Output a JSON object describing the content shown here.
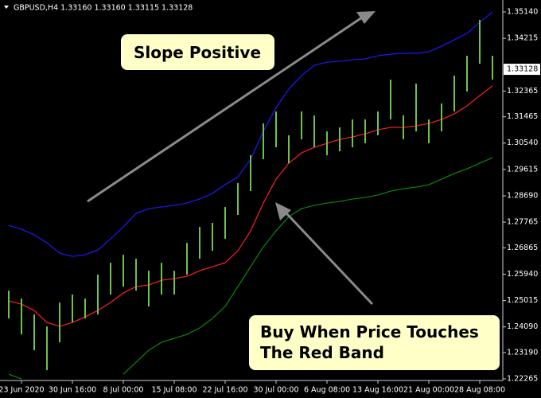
{
  "chart_data": {
    "type": "ohlc",
    "title": "GBPUSD,H4  1.33160 1.33160 1.33115 1.33128",
    "categories": [
      null,
      "23 Jun 2020",
      null,
      null,
      null,
      "30 Jun 16:00",
      null,
      null,
      null,
      "8 Jul 00:00",
      null,
      null,
      null,
      "15 Jul 08:00",
      null,
      null,
      null,
      "22 Jul 16:00",
      null,
      null,
      null,
      "30 Jul 00:00",
      null,
      null,
      null,
      "6 Aug 08:00",
      null,
      null,
      null,
      "13 Aug 16:00",
      null,
      null,
      null,
      "21 Aug 00:00",
      null,
      null,
      null,
      "28 Aug 08:00",
      null
    ],
    "high": [
      1.25364,
      1.25085,
      1.24527,
      1.24108,
      1.24946,
      1.25225,
      1.25085,
      1.25923,
      1.26342,
      1.26621,
      1.26482,
      1.26063,
      1.26342,
      1.26063,
      1.2704,
      1.27599,
      1.27739,
      1.28297,
      1.29135,
      1.30113,
      1.3123,
      1.31649,
      1.30811,
      1.31649,
      1.31509,
      1.3095,
      1.3109,
      1.31369,
      1.31369,
      1.31649,
      1.32766,
      1.31509,
      1.32626,
      1.31369,
      1.31928,
      1.32906,
      1.33604,
      1.34861,
      1.33604
    ],
    "low": [
      1.24387,
      1.23828,
      1.2327,
      1.22571,
      1.23549,
      1.24247,
      1.24387,
      1.24527,
      1.25225,
      1.25504,
      1.25364,
      1.24806,
      1.25225,
      1.25225,
      1.25923,
      1.26482,
      1.26761,
      1.2718,
      1.28018,
      1.28856,
      1.29973,
      1.30392,
      1.29833,
      1.30671,
      1.30392,
      1.30113,
      1.30252,
      1.30392,
      1.30532,
      1.30811,
      1.31369,
      1.30671,
      1.3095,
      1.30532,
      1.3095,
      1.31649,
      1.32347,
      1.33325,
      1.32766
    ],
    "bar_color": "#6fc24a",
    "series": [
      {
        "color": "#1a1aff",
        "values": [
          1.27655,
          1.27515,
          1.2732,
          1.2704,
          1.26677,
          1.26565,
          1.26621,
          1.26789,
          1.2718,
          1.27599,
          1.28074,
          1.28241,
          1.28297,
          1.28353,
          1.28437,
          1.28576,
          1.28772,
          1.29079,
          1.29358,
          1.29973,
          1.3095,
          1.31788,
          1.32431,
          1.32906,
          1.33269,
          1.3338,
          1.33408,
          1.33464,
          1.33492,
          1.33604,
          1.3366,
          1.33688,
          1.33688,
          1.33743,
          1.33939,
          1.34162,
          1.34386,
          1.34777,
          1.3514
        ]
      },
      {
        "color": "#ff2020",
        "values": [
          1.25001,
          1.2489,
          1.24666,
          1.24247,
          1.24108,
          1.24247,
          1.24443,
          1.24666,
          1.24946,
          1.25281,
          1.25504,
          1.2556,
          1.25728,
          1.25783,
          1.25867,
          1.26063,
          1.26202,
          1.26342,
          1.26761,
          1.27459,
          1.28437,
          1.29275,
          1.29833,
          1.30196,
          1.30392,
          1.30532,
          1.30671,
          1.30755,
          1.30867,
          1.31006,
          1.3109,
          1.3109,
          1.31146,
          1.3123,
          1.31369,
          1.31565,
          1.31844,
          1.32207,
          1.32543
        ]
      },
      {
        "color": "#0a8a0a",
        "values": [
          1.22432,
          1.22264,
          null,
          null,
          null,
          null,
          null,
          null,
          null,
          1.22432,
          1.22851,
          1.2327,
          1.23549,
          1.23689,
          1.23828,
          1.24052,
          1.24387,
          1.24806,
          1.25504,
          1.26202,
          1.26901,
          1.27459,
          1.27962,
          1.28241,
          1.28353,
          1.28437,
          1.28493,
          1.28576,
          1.28632,
          1.28716,
          1.28856,
          1.2894,
          1.28995,
          1.29079,
          1.29275,
          1.2947,
          1.29638,
          1.29833,
          1.30029
        ]
      }
    ],
    "ylim": [
      1.2221,
      1.3556
    ],
    "yticks": [
      {
        "value": 1.3514,
        "label": "1.35140"
      },
      {
        "value": 1.34215,
        "label": "1.34215"
      },
      {
        "value": 1.32365,
        "label": "1.32365"
      },
      {
        "value": 1.31465,
        "label": "1.31465"
      },
      {
        "value": 1.3054,
        "label": "1.30540"
      },
      {
        "value": 1.29615,
        "label": "1.29615"
      },
      {
        "value": 1.2869,
        "label": "1.28690"
      },
      {
        "value": 1.27765,
        "label": "1.27765"
      },
      {
        "value": 1.26865,
        "label": "1.26865"
      },
      {
        "value": 1.2594,
        "label": "1.25940"
      },
      {
        "value": 1.25015,
        "label": "1.25015"
      },
      {
        "value": 1.2409,
        "label": "1.24090"
      },
      {
        "value": 1.2319,
        "label": "1.23190"
      },
      {
        "value": 1.22265,
        "label": "1.22265"
      }
    ],
    "last_price": {
      "value": 1.33128,
      "label": "1.33128"
    },
    "annotations": [
      [
        "Slope Positive"
      ],
      [
        "Buy When Price Touches",
        "The Red Band"
      ]
    ]
  }
}
